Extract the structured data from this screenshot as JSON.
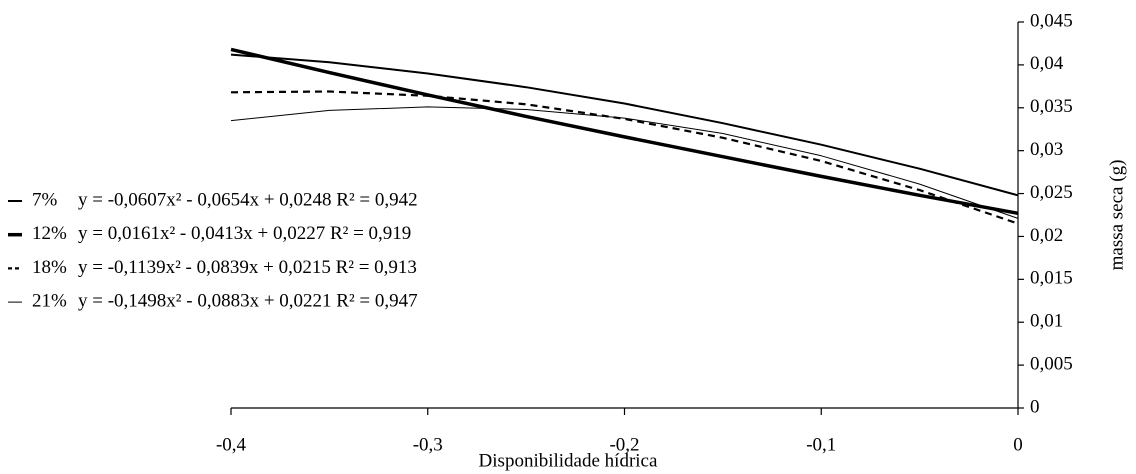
{
  "chart_data": {
    "type": "line",
    "x_label": "Disponibilidade hídrica",
    "y_label": "massa seca (g)",
    "x": [
      -0.4,
      -0.35,
      -0.3,
      -0.25,
      -0.2,
      -0.15,
      -0.1,
      -0.05,
      0
    ],
    "series": [
      {
        "name": "7%",
        "label": "y = -0,0607x² - 0,0654x + 0,0248 R² = 0,942",
        "color": "#000000",
        "line_width": 2,
        "style": "solid",
        "values": [
          0.0412,
          0.0403,
          0.039,
          0.0374,
          0.0355,
          0.0332,
          0.0307,
          0.0279,
          0.0248
        ]
      },
      {
        "name": "12%",
        "label": "y =  0,0161x² - 0,0413x + 0,0227 R² = 0,919",
        "color": "#000000",
        "line_width": 3.5,
        "style": "solid",
        "values": [
          0.0418,
          0.0391,
          0.0365,
          0.034,
          0.0316,
          0.0293,
          0.027,
          0.0248,
          0.0227
        ]
      },
      {
        "name": "18%",
        "label": "y = -0,1139x² - 0,0839x + 0,0215 R² = 0,913",
        "color": "#000000",
        "line_width": 2.2,
        "style": "dashed",
        "values": [
          0.0368,
          0.0369,
          0.0364,
          0.0354,
          0.0337,
          0.0315,
          0.0288,
          0.0254,
          0.0215
        ]
      },
      {
        "name": "21%",
        "label": "y = -0,1498x² - 0,0883x + 0,0221 R² = 0,947",
        "color": "#000000",
        "line_width": 1,
        "style": "solid",
        "values": [
          0.0335,
          0.0347,
          0.0351,
          0.0348,
          0.0338,
          0.032,
          0.0294,
          0.0261,
          0.0221
        ]
      }
    ],
    "xlim": [
      -0.4,
      0
    ],
    "ylim": [
      0,
      0.045
    ],
    "xticks": [
      {
        "value": -0.4,
        "label": "-0,4"
      },
      {
        "value": -0.3,
        "label": "-0,3"
      },
      {
        "value": -0.2,
        "label": "-0,2"
      },
      {
        "value": -0.1,
        "label": "-0,1"
      },
      0
    ],
    "yticks": [
      0,
      {
        "value": 0.005,
        "label": "0,005"
      },
      {
        "value": 0.01,
        "label": "0,01"
      },
      {
        "value": 0.015,
        "label": "0,015"
      },
      {
        "value": 0.02,
        "label": "0,02"
      },
      {
        "value": 0.025,
        "label": "0,025"
      },
      {
        "value": 0.03,
        "label": "0,03"
      },
      {
        "value": 0.035,
        "label": "0,035"
      },
      {
        "value": 0.04,
        "label": "0,04"
      },
      {
        "value": 0.045,
        "label": "0,045"
      }
    ],
    "y_axis_side": "right",
    "grid": false,
    "legend": "left"
  }
}
